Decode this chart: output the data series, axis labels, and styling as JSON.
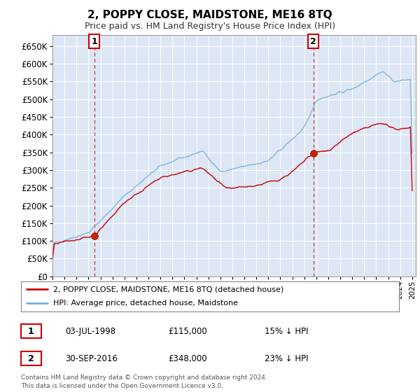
{
  "title": "2, POPPY CLOSE, MAIDSTONE, ME16 8TQ",
  "subtitle": "Price paid vs. HM Land Registry's House Price Index (HPI)",
  "sale1_date": "03-JUL-1998",
  "sale1_price": 115000,
  "sale1_label": "1",
  "sale1_year": 1998.5,
  "sale2_date": "30-SEP-2016",
  "sale2_price": 348000,
  "sale2_label": "2",
  "sale2_year": 2016.75,
  "legend_line1": "2, POPPY CLOSE, MAIDSTONE, ME16 8TQ (detached house)",
  "legend_line2": "HPI: Average price, detached house, Maidstone",
  "footer": "Contains HM Land Registry data © Crown copyright and database right 2024.\nThis data is licensed under the Open Government Licence v3.0.",
  "ylim_max": 680000,
  "xlim_start": 1995.0,
  "xlim_end": 2025.3,
  "red_color": "#cc0000",
  "blue_color": "#7ab0d8",
  "bg_color": "#dce6f5",
  "grid_color": "#ffffff",
  "dashed_color": "#cc0000",
  "hpi_seed": 17,
  "pp_seed": 42
}
